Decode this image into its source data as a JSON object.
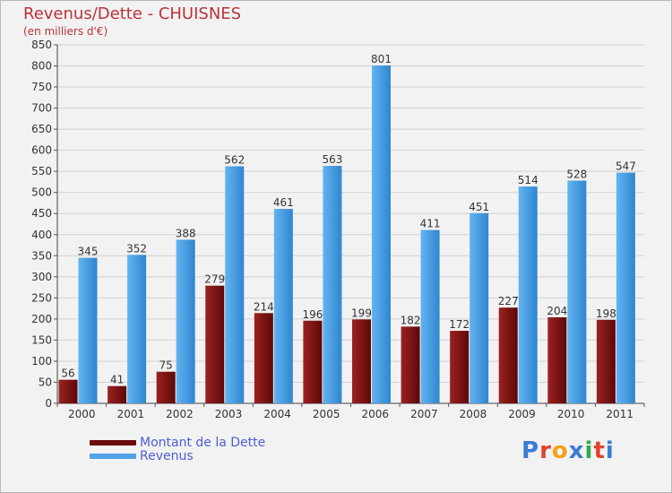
{
  "chart_data": {
    "type": "bar",
    "title": "Revenus/Dette - CHUISNES",
    "subtitle": "(en milliers d'€)",
    "categories": [
      "2000",
      "2001",
      "2002",
      "2003",
      "2004",
      "2005",
      "2006",
      "2007",
      "2008",
      "2009",
      "2010",
      "2011"
    ],
    "series": [
      {
        "name": "Montant de la Dette",
        "color": "#7a1212",
        "values": [
          56,
          41,
          75,
          279,
          214,
          196,
          199,
          182,
          172,
          227,
          204,
          198
        ]
      },
      {
        "name": "Revenus",
        "color": "#4fa3e6",
        "values": [
          345,
          352,
          388,
          562,
          461,
          563,
          801,
          411,
          451,
          514,
          528,
          547
        ]
      }
    ],
    "ylim": [
      0,
      850
    ],
    "ytick_step": 50,
    "grid": true,
    "legend_position": "bottom-left"
  },
  "logo": {
    "text": "Proxiti",
    "colors": [
      "#3a7bd5",
      "#e0442f",
      "#f0a21a",
      "#3a7bd5",
      "#2fa84f",
      "#e0442f",
      "#3a7bd5"
    ]
  }
}
